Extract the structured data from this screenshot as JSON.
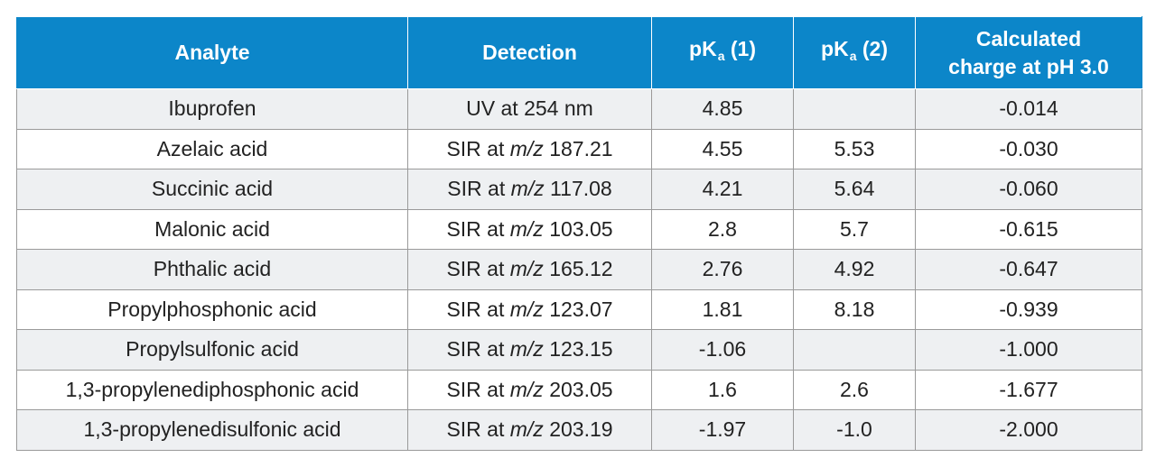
{
  "table": {
    "headers": {
      "analyte": "Analyte",
      "detection": "Detection",
      "pka1": {
        "base": "pK",
        "sub": "a",
        "suffix": " (1)"
      },
      "pka2": {
        "base": "pK",
        "sub": "a",
        "suffix": " (2)"
      },
      "charge_line1": "Calculated",
      "charge_line2": "charge at pH 3.0"
    },
    "rows": [
      {
        "analyte": "Ibuprofen",
        "detection": {
          "prefix": "UV at 254 nm",
          "unit": "",
          "value": ""
        },
        "pka1": "4.85",
        "pka2": "",
        "charge": "-0.014"
      },
      {
        "analyte": "Azelaic acid",
        "detection": {
          "prefix": "SIR at ",
          "unit": "m/z",
          "value": " 187.21"
        },
        "pka1": "4.55",
        "pka2": "5.53",
        "charge": "-0.030"
      },
      {
        "analyte": "Succinic acid",
        "detection": {
          "prefix": "SIR at ",
          "unit": "m/z",
          "value": " 117.08"
        },
        "pka1": "4.21",
        "pka2": "5.64",
        "charge": "-0.060"
      },
      {
        "analyte": "Malonic acid",
        "detection": {
          "prefix": "SIR at ",
          "unit": "m/z",
          "value": " 103.05"
        },
        "pka1": "2.8",
        "pka2": "5.7",
        "charge": "-0.615"
      },
      {
        "analyte": "Phthalic acid",
        "detection": {
          "prefix": "SIR at ",
          "unit": "m/z",
          "value": " 165.12"
        },
        "pka1": "2.76",
        "pka2": "4.92",
        "charge": "-0.647"
      },
      {
        "analyte": "Propylphosphonic acid",
        "detection": {
          "prefix": "SIR at ",
          "unit": "m/z",
          "value": " 123.07"
        },
        "pka1": "1.81",
        "pka2": "8.18",
        "charge": "-0.939"
      },
      {
        "analyte": "Propylsulfonic acid",
        "detection": {
          "prefix": "SIR at ",
          "unit": "m/z",
          "value": " 123.15"
        },
        "pka1": "-1.06",
        "pka2": "",
        "charge": "-1.000"
      },
      {
        "analyte": "1,3-propylenediphosphonic acid",
        "detection": {
          "prefix": "SIR at ",
          "unit": "m/z",
          "value": " 203.05"
        },
        "pka1": "1.6",
        "pka2": "2.6",
        "charge": "-1.677"
      },
      {
        "analyte": "1,3-propylenedisulfonic acid",
        "detection": {
          "prefix": "SIR at ",
          "unit": "m/z",
          "value": " 203.19"
        },
        "pka1": "-1.97",
        "pka2": "-1.0",
        "charge": "-2.000"
      }
    ]
  },
  "colors": {
    "header_bg": "#0c86c9",
    "header_text": "#ffffff",
    "row_alt_bg": "#eef0f2",
    "border": "#9a9a9a"
  }
}
